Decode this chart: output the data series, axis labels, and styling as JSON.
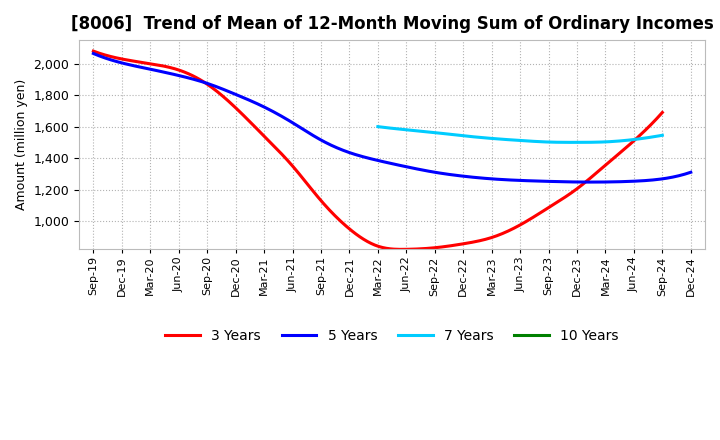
{
  "title": "[8006]  Trend of Mean of 12-Month Moving Sum of Ordinary Incomes",
  "ylabel": "Amount (million yen)",
  "background_color": "#ffffff",
  "plot_background": "#ffffff",
  "grid_color": "#aaaaaa",
  "title_fontsize": 12,
  "axis_fontsize": 9,
  "legend_fontsize": 10,
  "series": {
    "3years": {
      "color": "#ff0000",
      "label": "3 Years",
      "x_idx": [
        0,
        1,
        2,
        3,
        4,
        5,
        6,
        7,
        8,
        9,
        10,
        11,
        12,
        13,
        14,
        15,
        16,
        17,
        18,
        19,
        20
      ],
      "y": [
        2080,
        2030,
        2000,
        1960,
        1870,
        1720,
        1540,
        1350,
        1130,
        950,
        840,
        820,
        830,
        855,
        895,
        975,
        1085,
        1205,
        1355,
        1510,
        1690
      ]
    },
    "5years": {
      "color": "#0000ff",
      "label": "5 Years",
      "x_idx": [
        0,
        1,
        2,
        3,
        4,
        5,
        6,
        7,
        8,
        9,
        10,
        11,
        12,
        13,
        14,
        15,
        16,
        17,
        18,
        19,
        20,
        21
      ],
      "y": [
        2065,
        2005,
        1965,
        1925,
        1875,
        1805,
        1725,
        1625,
        1515,
        1435,
        1385,
        1345,
        1310,
        1285,
        1268,
        1258,
        1252,
        1248,
        1248,
        1253,
        1268,
        1310
      ]
    },
    "7years": {
      "color": "#00ccff",
      "label": "7 Years",
      "x_idx": [
        10,
        11,
        12,
        13,
        14,
        15,
        16,
        17,
        18,
        19,
        20
      ],
      "y": [
        1600,
        1580,
        1562,
        1542,
        1525,
        1512,
        1502,
        1500,
        1503,
        1518,
        1545
      ]
    },
    "10years": {
      "color": "#008000",
      "label": "10 Years",
      "x_idx": [],
      "y": []
    }
  },
  "ylim": [
    820,
    2150
  ],
  "yticks": [
    1000,
    1200,
    1400,
    1600,
    1800,
    2000
  ],
  "xtick_labels": [
    "Sep-19",
    "Dec-19",
    "Mar-20",
    "Jun-20",
    "Sep-20",
    "Dec-20",
    "Mar-21",
    "Jun-21",
    "Sep-21",
    "Dec-21",
    "Mar-22",
    "Jun-22",
    "Sep-22",
    "Dec-22",
    "Mar-23",
    "Jun-23",
    "Sep-23",
    "Dec-23",
    "Mar-24",
    "Jun-24",
    "Sep-24",
    "Dec-24"
  ]
}
